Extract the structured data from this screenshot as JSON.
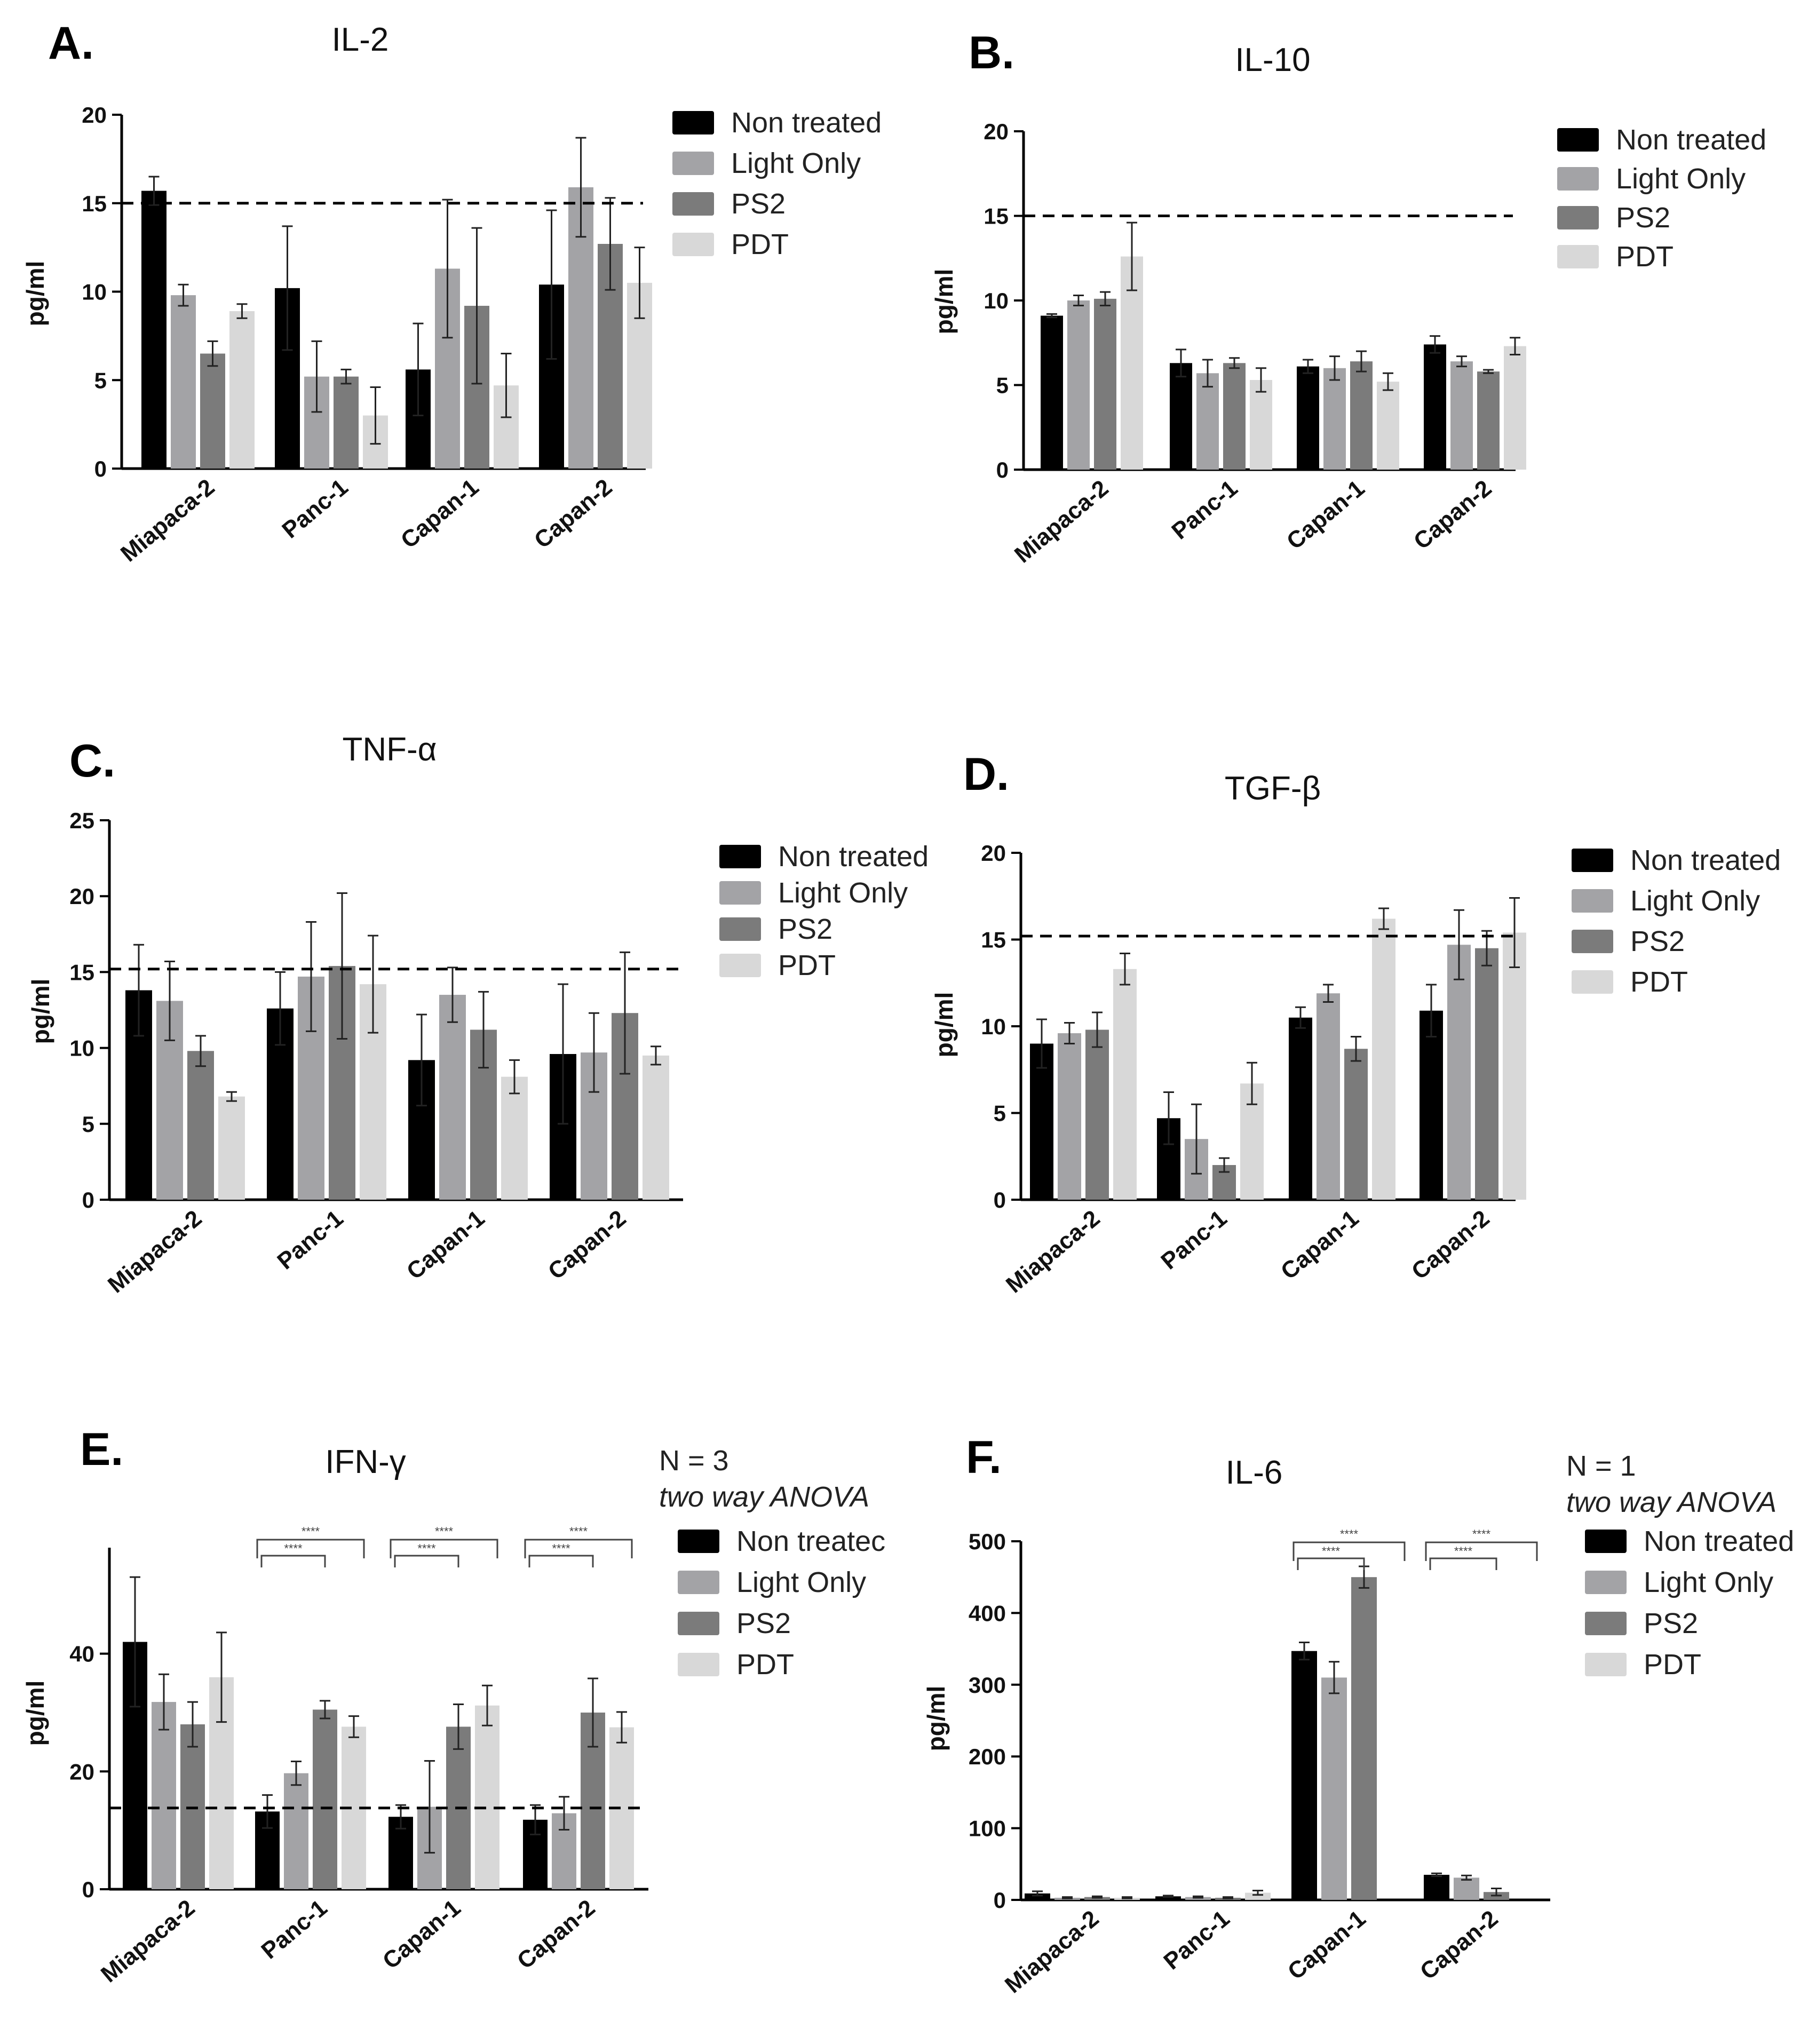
{
  "colors": {
    "Non treated": "#000000",
    "Light Only": "#a3a3a6",
    "PS2": "#7b7b7b",
    "PDT": "#d8d8d8",
    "axis": "#000000",
    "error": "#222222"
  },
  "chart_data": [
    {
      "letter": "A.",
      "title": "IL-2",
      "type": "bar",
      "ylabel": "pg/ml",
      "ylim": [
        0,
        20
      ],
      "yticks": [
        "0",
        "5",
        "10",
        "15",
        "20"
      ],
      "categories": [
        "Miapaca-2",
        "Panc-1",
        "Capan-1",
        "Capan-2"
      ],
      "reference_line": 15,
      "legend": [
        "Non treated",
        "Light Only",
        "PS2",
        "PDT"
      ],
      "series": [
        {
          "name": "Non treated",
          "values": [
            15.7,
            10.2,
            5.6,
            10.4
          ],
          "errors": [
            0.8,
            3.5,
            2.6,
            4.2
          ]
        },
        {
          "name": "Light Only",
          "values": [
            9.8,
            5.2,
            11.3,
            15.9
          ],
          "errors": [
            0.6,
            2.0,
            3.9,
            2.8
          ]
        },
        {
          "name": "PS2",
          "values": [
            6.5,
            5.2,
            9.2,
            12.7
          ],
          "errors": [
            0.7,
            0.4,
            4.4,
            2.6
          ]
        },
        {
          "name": "PDT",
          "values": [
            8.9,
            3.0,
            4.7,
            10.5
          ],
          "errors": [
            0.4,
            1.6,
            1.8,
            2.0
          ]
        }
      ]
    },
    {
      "letter": "B.",
      "title": "IL-10",
      "type": "bar",
      "ylabel": "pg/ml",
      "ylim": [
        0,
        20
      ],
      "yticks": [
        "0",
        "5",
        "10",
        "15",
        "20"
      ],
      "categories": [
        "Miapaca-2",
        "Panc-1",
        "Capan-1",
        "Capan-2"
      ],
      "reference_line": 15,
      "legend": [
        "Non treated",
        "Light Only",
        "PS2",
        "PDT"
      ],
      "series": [
        {
          "name": "Non treated",
          "values": [
            9.1,
            6.3,
            6.1,
            7.4
          ],
          "errors": [
            0.1,
            0.8,
            0.4,
            0.5
          ]
        },
        {
          "name": "Light Only",
          "values": [
            10.0,
            5.7,
            6.0,
            6.4
          ],
          "errors": [
            0.3,
            0.8,
            0.7,
            0.3
          ]
        },
        {
          "name": "PS2",
          "values": [
            10.1,
            6.3,
            6.4,
            5.8
          ],
          "errors": [
            0.4,
            0.3,
            0.6,
            0.1
          ]
        },
        {
          "name": "PDT",
          "values": [
            12.6,
            5.3,
            5.2,
            7.3
          ],
          "errors": [
            2.0,
            0.7,
            0.5,
            0.5
          ]
        }
      ]
    },
    {
      "letter": "C.",
      "title": "TNF-α",
      "type": "bar",
      "ylabel": "pg/ml",
      "ylim": [
        0,
        25
      ],
      "yticks": [
        "0",
        "5",
        "10",
        "15",
        "20",
        "25"
      ],
      "categories": [
        "Miapaca-2",
        "Panc-1",
        "Capan-1",
        "Capan-2"
      ],
      "reference_line": 15.2,
      "legend": [
        "Non treated",
        "Light Only",
        "PS2",
        "PDT"
      ],
      "series": [
        {
          "name": "Non treated",
          "values": [
            13.8,
            12.6,
            9.2,
            9.6
          ],
          "errors": [
            3.0,
            2.4,
            3.0,
            4.6
          ]
        },
        {
          "name": "Light Only",
          "values": [
            13.1,
            14.7,
            13.5,
            9.7
          ],
          "errors": [
            2.6,
            3.6,
            1.8,
            2.6
          ]
        },
        {
          "name": "PS2",
          "values": [
            9.8,
            15.4,
            11.2,
            12.3
          ],
          "errors": [
            1.0,
            4.8,
            2.5,
            4.0
          ]
        },
        {
          "name": "PDT",
          "values": [
            6.8,
            14.2,
            8.1,
            9.5
          ],
          "errors": [
            0.3,
            3.2,
            1.1,
            0.6
          ]
        }
      ]
    },
    {
      "letter": "D.",
      "title": "TGF-β",
      "type": "bar",
      "ylabel": "pg/ml",
      "ylim": [
        0,
        20
      ],
      "yticks": [
        "0",
        "5",
        "10",
        "15",
        "20"
      ],
      "categories": [
        "Miapaca-2",
        "Panc-1",
        "Capan-1",
        "Capan-2"
      ],
      "reference_line": 15.2,
      "legend": [
        "Non treated",
        "Light Only",
        "PS2",
        "PDT"
      ],
      "series": [
        {
          "name": "Non treated",
          "values": [
            9.0,
            4.7,
            10.5,
            10.9
          ],
          "errors": [
            1.4,
            1.5,
            0.6,
            1.5
          ]
        },
        {
          "name": "Light Only",
          "values": [
            9.6,
            3.5,
            11.9,
            14.7
          ],
          "errors": [
            0.6,
            2.0,
            0.5,
            2.0
          ]
        },
        {
          "name": "PS2",
          "values": [
            9.8,
            2.0,
            8.7,
            14.5
          ],
          "errors": [
            1.0,
            0.4,
            0.7,
            1.0
          ]
        },
        {
          "name": "PDT",
          "values": [
            13.3,
            6.7,
            16.2,
            15.4
          ],
          "errors": [
            0.9,
            1.2,
            0.6,
            2.0
          ]
        }
      ]
    },
    {
      "letter": "E.",
      "title": "IFN-γ",
      "type": "bar",
      "ylabel": "pg/ml",
      "ylim": [
        0,
        58
      ],
      "yticks": [
        "0",
        "20",
        "40"
      ],
      "ytick_values": [
        0,
        20,
        40
      ],
      "categories": [
        "Miapaca-2",
        "Panc-1",
        "Capan-1",
        "Capan-2"
      ],
      "reference_line": 13.8,
      "legend": [
        "Non treatec",
        "Light Only",
        "PS2",
        "PDT"
      ],
      "note": [
        "N = 3",
        "two way ANOVA"
      ],
      "significance": [
        "****",
        "****"
      ],
      "sig_groups": [
        1,
        2,
        3
      ],
      "series": [
        {
          "name": "Non treated",
          "values": [
            42.0,
            13.2,
            12.3,
            11.8
          ],
          "errors": [
            11.0,
            2.8,
            2.0,
            2.5
          ]
        },
        {
          "name": "Light Only",
          "values": [
            31.8,
            19.7,
            14.0,
            12.9
          ],
          "errors": [
            4.7,
            2.0,
            7.8,
            2.8
          ]
        },
        {
          "name": "PS2",
          "values": [
            28.0,
            30.5,
            27.6,
            30.0
          ],
          "errors": [
            3.8,
            1.5,
            3.8,
            5.8
          ]
        },
        {
          "name": "PDT",
          "values": [
            36.0,
            27.6,
            31.2,
            27.5
          ],
          "errors": [
            7.6,
            1.8,
            3.4,
            2.6
          ]
        }
      ]
    },
    {
      "letter": "F.",
      "title": "IL-6",
      "type": "bar",
      "ylabel": "pg/ml",
      "ylim": [
        0,
        500
      ],
      "yticks": [
        "0",
        "100",
        "200",
        "300",
        "400",
        "500"
      ],
      "categories": [
        "Miapaca-2",
        "Panc-1",
        "Capan-1",
        "Capan-2"
      ],
      "legend": [
        "Non treated",
        "Light Only",
        "PS2",
        "PDT"
      ],
      "note": [
        "N = 1",
        "two way ANOVA"
      ],
      "significance": [
        "****",
        "****"
      ],
      "sig_groups": [
        2,
        3
      ],
      "series": [
        {
          "name": "Non treated",
          "values": [
            9,
            5,
            347,
            35
          ],
          "errors": [
            3,
            1,
            12,
            2
          ]
        },
        {
          "name": "Light Only",
          "values": [
            3,
            4,
            310,
            31
          ],
          "errors": [
            1,
            1,
            22,
            3
          ]
        },
        {
          "name": "PS2",
          "values": [
            4,
            3,
            450,
            11
          ],
          "errors": [
            1,
            1,
            15,
            5
          ]
        },
        {
          "name": "PDT",
          "values": [
            3,
            10,
            0,
            0
          ],
          "errors": [
            1,
            3,
            0,
            0
          ]
        }
      ]
    }
  ]
}
